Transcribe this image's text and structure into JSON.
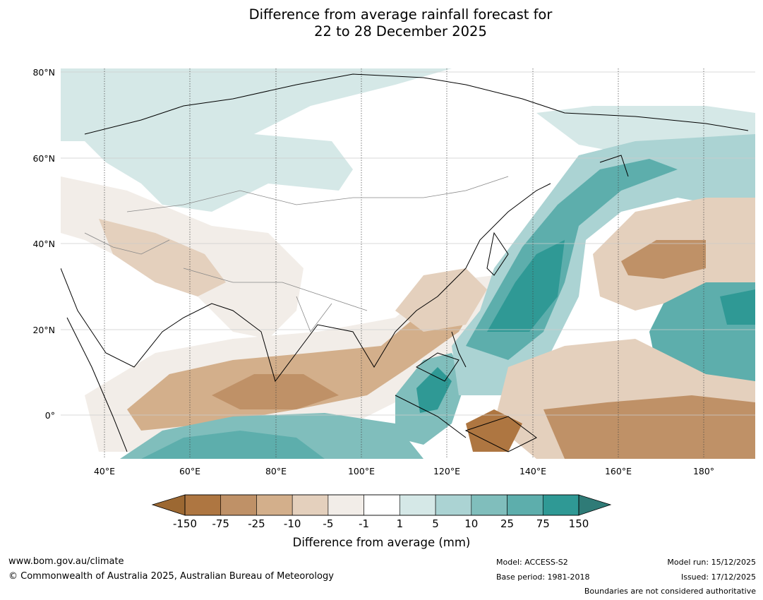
{
  "title": {
    "line1": "Difference from average rainfall forecast for",
    "line2": "22 to 28 December 2025"
  },
  "map": {
    "lat_labels": [
      "80°N",
      "60°N",
      "40°N",
      "20°N",
      "0°"
    ],
    "lon_labels": [
      "40°E",
      "60°E",
      "80°E",
      "100°E",
      "120°E",
      "140°E",
      "160°E",
      "180°"
    ]
  },
  "colorbar": {
    "ticks": [
      "-150",
      "-75",
      "-25",
      "-10",
      "-5",
      "-1",
      "1",
      "5",
      "10",
      "25",
      "75",
      "150"
    ],
    "colors": [
      "#ae7641",
      "#bf9167",
      "#d3af8b",
      "#e4d0bd",
      "#f2ede8",
      "#ffffff",
      "#d5e8e7",
      "#abd3d3",
      "#80bebc",
      "#5daeac",
      "#2f9995"
    ],
    "extend_low_color": "#9c6832",
    "extend_high_color": "#2f7b77",
    "label": "Difference from average (mm)"
  },
  "footer": {
    "website": "www.bom.gov.au/climate",
    "copyright": "© Commonwealth of Australia 2025, Australian Bureau of Meteorology",
    "model": "Model: ACCESS-S2",
    "base_period": "Base period: 1981-2018",
    "model_run": "Model run: 15/12/2025",
    "issued": "Issued: 17/12/2025",
    "disclaimer": "Boundaries are not considered authoritative"
  }
}
